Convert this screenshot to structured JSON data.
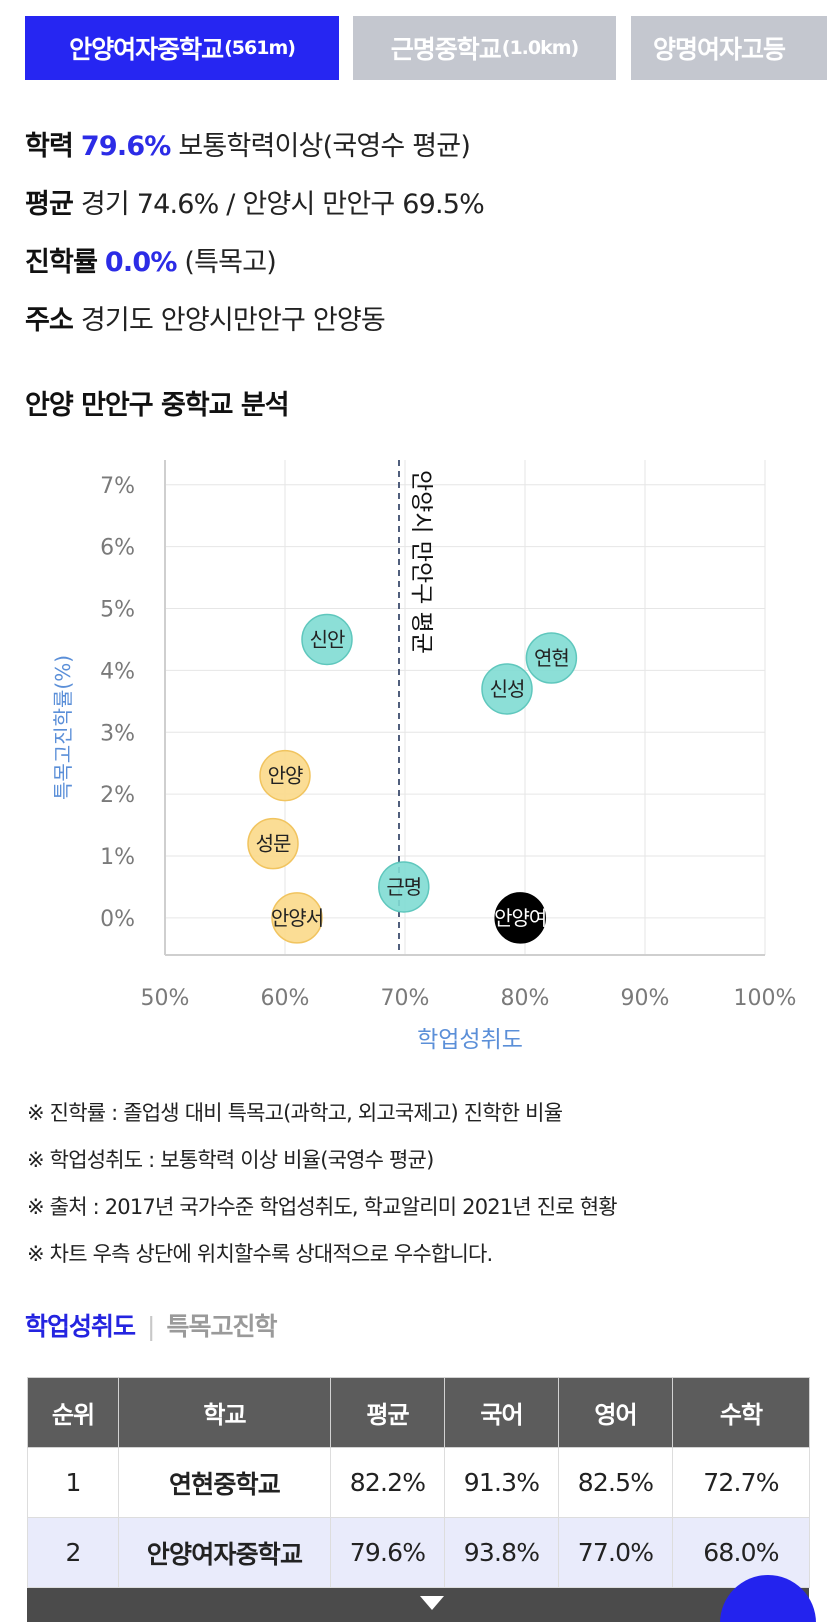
{
  "school_tabs": [
    {
      "name": "안양여자중학교",
      "distance": "(561m)"
    },
    {
      "name": "근명중학교",
      "distance": "(1.0km)"
    },
    {
      "name": "양명여자고등",
      "distance": ""
    }
  ],
  "info": {
    "academic_label": "학력",
    "academic_value": "79.6%",
    "academic_desc": "보통학력이상(국영수 평균)",
    "average_label": "평균",
    "average_value": "경기 74.6% / 안양시 만안구 69.5%",
    "advance_label": "진학률",
    "advance_value": "0.0%",
    "advance_desc": "(특목고)",
    "address_label": "주소",
    "address_value": "경기도 안양시만안구 안양동"
  },
  "section_title": "안양 만안구 중학교 분석",
  "chart_data": {
    "type": "scatter",
    "xlabel": "학업성취도",
    "ylabel": "특목고진학률(%)",
    "xlim": [
      50,
      100
    ],
    "ylim": [
      -0.6,
      7.4
    ],
    "x_ticks": [
      "50%",
      "60%",
      "70%",
      "80%",
      "90%",
      "100%"
    ],
    "y_ticks": [
      "0%",
      "1%",
      "2%",
      "3%",
      "4%",
      "5%",
      "6%",
      "7%"
    ],
    "reference_line": {
      "x": 69.5,
      "label": "안양시 만안구 평균"
    },
    "grid": true,
    "points": [
      {
        "label": "신안",
        "x": 63.5,
        "y": 4.5,
        "group": "above"
      },
      {
        "label": "연현",
        "x": 82.2,
        "y": 4.2,
        "group": "above"
      },
      {
        "label": "신성",
        "x": 78.5,
        "y": 3.7,
        "group": "above"
      },
      {
        "label": "근명",
        "x": 69.9,
        "y": 0.5,
        "group": "above"
      },
      {
        "label": "안양",
        "x": 60.0,
        "y": 2.3,
        "group": "below"
      },
      {
        "label": "성문",
        "x": 59.0,
        "y": 1.2,
        "group": "below"
      },
      {
        "label": "안양서",
        "x": 61.0,
        "y": 0.0,
        "group": "below"
      },
      {
        "label": "안양여",
        "x": 79.6,
        "y": 0.0,
        "group": "selected"
      }
    ],
    "colors": {
      "above_fill": "#7fdcd3",
      "above_stroke": "#5fc7bd",
      "below_fill": "#fbd98a",
      "below_stroke": "#f1c45f",
      "selected_fill": "#000000",
      "axis_label": "#5b8fd8",
      "tick": "#7a7a7a",
      "grid": "#e6e6e6"
    }
  },
  "notes": [
    "※ 진학률 : 졸업생 대비 특목고(과학고, 외고국제고) 진학한 비율",
    "※ 학업성취도 : 보통학력 이상 비율(국영수 평균)",
    "※ 출처 : 2017년 국가수준 학업성취도, 학교알리미 2021년 진로 현황",
    "※ 차트 우측 상단에 위치할수록 상대적으로 우수합니다."
  ],
  "subtabs": {
    "active": "학업성취도",
    "inactive": "특목고진학"
  },
  "table": {
    "headers": [
      "순위",
      "학교",
      "평균",
      "국어",
      "영어",
      "수학"
    ],
    "rows": [
      [
        "1",
        "연현중학교",
        "82.2%",
        "91.3%",
        "82.5%",
        "72.7%"
      ],
      [
        "2",
        "안양여자중학교",
        "79.6%",
        "93.8%",
        "77.0%",
        "68.0%"
      ]
    ]
  }
}
